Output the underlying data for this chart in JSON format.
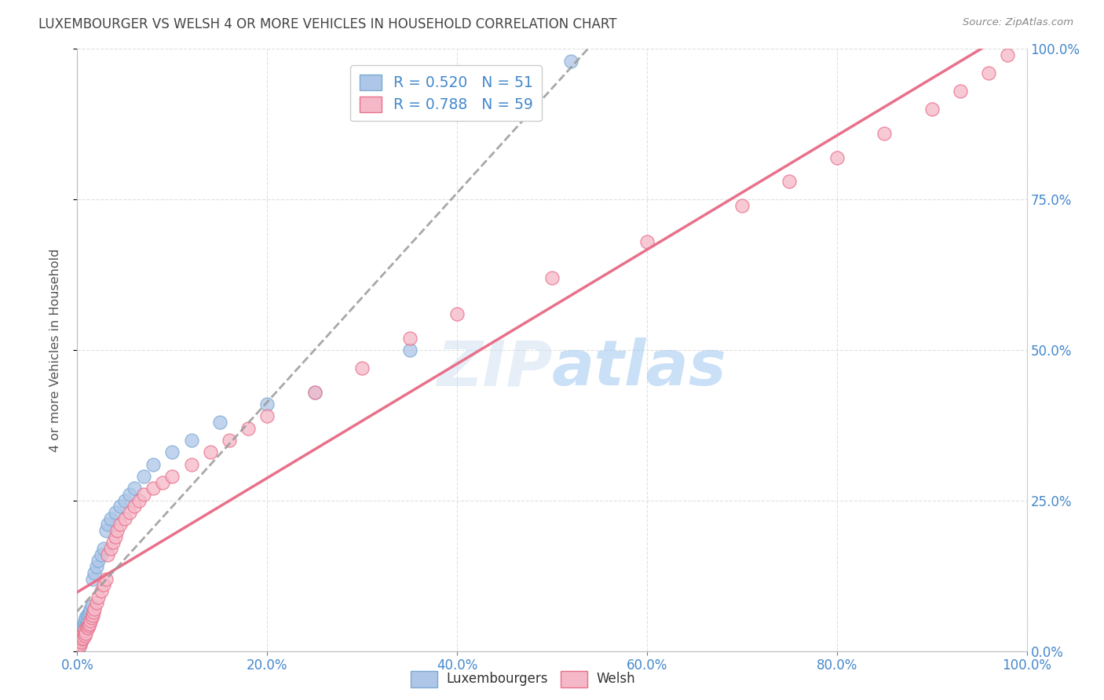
{
  "title": "LUXEMBOURGER VS WELSH 4 OR MORE VEHICLES IN HOUSEHOLD CORRELATION CHART",
  "source": "Source: ZipAtlas.com",
  "ylabel": "4 or more Vehicles in Household",
  "watermark": "ZIPatlas",
  "legend_luxembourgers": "Luxembourgers",
  "legend_welsh": "Welsh",
  "lux_R": "0.520",
  "lux_N": "51",
  "welsh_R": "0.788",
  "welsh_N": "59",
  "lux_color": "#aec6e8",
  "welsh_color": "#f5b8c8",
  "lux_edge_color": "#7baad4",
  "welsh_edge_color": "#e8708a",
  "lux_line_color": "#999999",
  "welsh_line_color": "#e8708a",
  "background_color": "#ffffff",
  "grid_color": "#e0e0e0",
  "title_color": "#444444",
  "source_color": "#888888",
  "label_color": "#555555",
  "tick_color": "#4488cc",
  "lux_scatter_x": [
    0.001,
    0.001,
    0.002,
    0.002,
    0.002,
    0.003,
    0.003,
    0.003,
    0.004,
    0.004,
    0.005,
    0.005,
    0.005,
    0.006,
    0.006,
    0.007,
    0.007,
    0.008,
    0.008,
    0.009,
    0.009,
    0.01,
    0.01,
    0.011,
    0.012,
    0.013,
    0.014,
    0.015,
    0.016,
    0.018,
    0.02,
    0.022,
    0.025,
    0.028,
    0.03,
    0.032,
    0.035,
    0.04,
    0.045,
    0.05,
    0.055,
    0.06,
    0.07,
    0.08,
    0.1,
    0.12,
    0.15,
    0.2,
    0.25,
    0.35,
    0.52
  ],
  "lux_scatter_y": [
    0.005,
    0.01,
    0.008,
    0.015,
    0.02,
    0.012,
    0.018,
    0.025,
    0.015,
    0.022,
    0.02,
    0.03,
    0.035,
    0.025,
    0.04,
    0.03,
    0.045,
    0.035,
    0.05,
    0.04,
    0.055,
    0.045,
    0.06,
    0.05,
    0.06,
    0.065,
    0.07,
    0.075,
    0.12,
    0.13,
    0.14,
    0.15,
    0.16,
    0.17,
    0.2,
    0.21,
    0.22,
    0.23,
    0.24,
    0.25,
    0.26,
    0.27,
    0.29,
    0.31,
    0.33,
    0.35,
    0.38,
    0.41,
    0.43,
    0.5,
    0.98
  ],
  "welsh_scatter_x": [
    0.001,
    0.002,
    0.003,
    0.003,
    0.004,
    0.005,
    0.005,
    0.006,
    0.007,
    0.008,
    0.008,
    0.009,
    0.01,
    0.011,
    0.012,
    0.013,
    0.014,
    0.015,
    0.016,
    0.017,
    0.018,
    0.02,
    0.022,
    0.025,
    0.028,
    0.03,
    0.032,
    0.035,
    0.038,
    0.04,
    0.042,
    0.045,
    0.05,
    0.055,
    0.06,
    0.065,
    0.07,
    0.08,
    0.09,
    0.1,
    0.12,
    0.14,
    0.16,
    0.18,
    0.2,
    0.25,
    0.3,
    0.35,
    0.4,
    0.5,
    0.6,
    0.7,
    0.75,
    0.8,
    0.85,
    0.9,
    0.93,
    0.96,
    0.98
  ],
  "welsh_scatter_y": [
    0.008,
    0.012,
    0.01,
    0.018,
    0.015,
    0.02,
    0.025,
    0.022,
    0.028,
    0.025,
    0.035,
    0.03,
    0.04,
    0.038,
    0.042,
    0.045,
    0.05,
    0.055,
    0.06,
    0.065,
    0.07,
    0.08,
    0.09,
    0.1,
    0.11,
    0.12,
    0.16,
    0.17,
    0.18,
    0.19,
    0.2,
    0.21,
    0.22,
    0.23,
    0.24,
    0.25,
    0.26,
    0.27,
    0.28,
    0.29,
    0.31,
    0.33,
    0.35,
    0.37,
    0.39,
    0.43,
    0.47,
    0.52,
    0.56,
    0.62,
    0.68,
    0.74,
    0.78,
    0.82,
    0.86,
    0.9,
    0.93,
    0.96,
    0.99
  ],
  "xlim": [
    0.0,
    1.0
  ],
  "ylim": [
    0.0,
    1.0
  ],
  "x_ticks": [
    0.0,
    0.2,
    0.4,
    0.6,
    0.8,
    1.0
  ],
  "x_tick_labels": [
    "0.0%",
    "20.0%",
    "40.0%",
    "60.0%",
    "80.0%",
    "100.0%"
  ],
  "y_ticks": [
    0.0,
    0.25,
    0.5,
    0.75,
    1.0
  ],
  "y_tick_labels": [
    "0.0%",
    "25.0%",
    "50.0%",
    "75.0%",
    "100.0%"
  ]
}
